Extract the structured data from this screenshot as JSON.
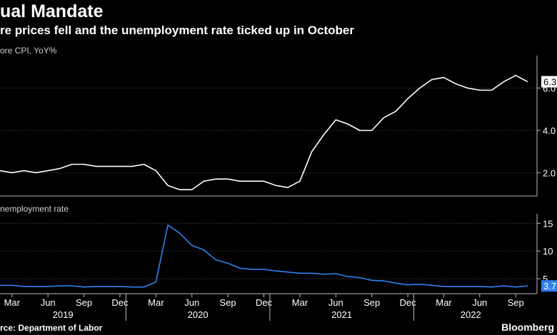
{
  "header": {
    "title": "ual Mandate",
    "subtitle": "re prices fell and the unemployment rate ticked up in October"
  },
  "footer": {
    "source": "rce: Department of Labor",
    "brand": "Bloomberg"
  },
  "colors": {
    "background": "#000000",
    "cpi_line": "#ffffff",
    "unemployment_line": "#2f80ed",
    "axis": "#bbbbbb",
    "grid": "#4a4a4a",
    "cpi_badge_bg": "#ffffff",
    "unemp_badge_bg": "#2f80ed"
  },
  "chart_data": [
    {
      "type": "line",
      "panel": "top",
      "title": "ore CPI, YoY%",
      "x": [
        "2019-02",
        "2019-03",
        "2019-04",
        "2019-05",
        "2019-06",
        "2019-07",
        "2019-08",
        "2019-09",
        "2019-10",
        "2019-11",
        "2019-12",
        "2020-01",
        "2020-02",
        "2020-03",
        "2020-04",
        "2020-05",
        "2020-06",
        "2020-07",
        "2020-08",
        "2020-09",
        "2020-10",
        "2020-11",
        "2020-12",
        "2021-01",
        "2021-02",
        "2021-03",
        "2021-04",
        "2021-05",
        "2021-06",
        "2021-07",
        "2021-08",
        "2021-09",
        "2021-10",
        "2021-11",
        "2021-12",
        "2022-01",
        "2022-02",
        "2022-03",
        "2022-04",
        "2022-05",
        "2022-06",
        "2022-07",
        "2022-08",
        "2022-09",
        "2022-10"
      ],
      "series": [
        {
          "values": [
            2.1,
            2.0,
            2.1,
            2.0,
            2.1,
            2.2,
            2.4,
            2.4,
            2.3,
            2.3,
            2.3,
            2.3,
            2.4,
            2.1,
            1.4,
            1.2,
            1.2,
            1.6,
            1.7,
            1.7,
            1.6,
            1.6,
            1.6,
            1.4,
            1.3,
            1.6,
            3.0,
            3.8,
            4.5,
            4.3,
            4.0,
            4.0,
            4.6,
            4.9,
            5.5,
            6.0,
            6.4,
            6.5,
            6.2,
            6.0,
            5.9,
            5.9,
            6.3,
            6.6,
            6.3
          ]
        }
      ],
      "y_ticks": [
        "2.0",
        "4.0",
        "6.0"
      ],
      "ylim": [
        0.9,
        7.4
      ],
      "last_label": "6.3",
      "x_tick_labels": [
        "Mar",
        "Jun",
        "Sep",
        "Dec",
        "Mar",
        "Jun",
        "Sep",
        "Dec",
        "Mar",
        "Jun",
        "Sep",
        "Dec",
        "Mar",
        "Jun",
        "Sep"
      ],
      "x_year_labels": [
        "2019",
        "2020",
        "2021",
        "2022"
      ],
      "grid": true
    },
    {
      "type": "line",
      "panel": "bottom",
      "title": "nemployment rate",
      "x": [
        "2019-02",
        "2019-03",
        "2019-04",
        "2019-05",
        "2019-06",
        "2019-07",
        "2019-08",
        "2019-09",
        "2019-10",
        "2019-11",
        "2019-12",
        "2020-01",
        "2020-02",
        "2020-03",
        "2020-04",
        "2020-05",
        "2020-06",
        "2020-07",
        "2020-08",
        "2020-09",
        "2020-10",
        "2020-11",
        "2020-12",
        "2021-01",
        "2021-02",
        "2021-03",
        "2021-04",
        "2021-05",
        "2021-06",
        "2021-07",
        "2021-08",
        "2021-09",
        "2021-10",
        "2021-11",
        "2021-12",
        "2022-01",
        "2022-02",
        "2022-03",
        "2022-04",
        "2022-05",
        "2022-06",
        "2022-07",
        "2022-08",
        "2022-09",
        "2022-10"
      ],
      "series": [
        {
          "values": [
            3.8,
            3.8,
            3.6,
            3.6,
            3.6,
            3.7,
            3.7,
            3.5,
            3.6,
            3.6,
            3.6,
            3.5,
            3.5,
            4.4,
            14.7,
            13.2,
            11.0,
            10.2,
            8.4,
            7.8,
            6.9,
            6.7,
            6.7,
            6.4,
            6.2,
            6.0,
            6.0,
            5.8,
            5.9,
            5.4,
            5.2,
            4.7,
            4.6,
            4.2,
            3.9,
            4.0,
            3.8,
            3.6,
            3.6,
            3.6,
            3.6,
            3.5,
            3.7,
            3.5,
            3.7
          ]
        }
      ],
      "y_ticks": [
        "5",
        "10",
        "15"
      ],
      "ylim": [
        2.3,
        16.2
      ],
      "last_label": "3.7",
      "grid": true
    }
  ]
}
